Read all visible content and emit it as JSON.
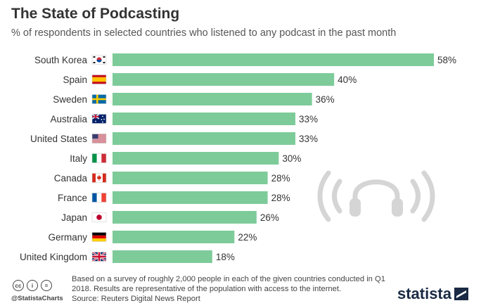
{
  "header": {
    "title": "The State of Podcasting",
    "subtitle": "% of respondents in selected countries who listened to any podcast in the past month"
  },
  "chart_data": {
    "type": "bar",
    "orientation": "horizontal",
    "categories": [
      "South Korea",
      "Spain",
      "Sweden",
      "Australia",
      "United States",
      "Italy",
      "Canada",
      "France",
      "Japan",
      "Germany",
      "United Kingdom"
    ],
    "values": [
      58,
      40,
      36,
      33,
      33,
      30,
      28,
      28,
      26,
      22,
      18
    ],
    "value_labels": [
      "58%",
      "40%",
      "36%",
      "33%",
      "33%",
      "30%",
      "28%",
      "28%",
      "26%",
      "22%",
      "18%"
    ],
    "value_unit": "%",
    "xlim": [
      0,
      58
    ],
    "bar_color": "#7ecb9a",
    "grid": false,
    "title": "The State of Podcasting",
    "subtitle": "% of respondents in selected countries who listened to any podcast in the past month"
  },
  "footer": {
    "note": "Based on a survey of roughly 2,000 people in each of the given countries conducted in Q1 2018. Results are representative of the population with access to the internet.",
    "source": "Source: Reuters Digital News Report",
    "handle": "@StatistaCharts",
    "brand": "statista",
    "license_icons": [
      "cc",
      "i",
      "="
    ]
  },
  "icons": {
    "watermark": "headphones-icon",
    "flags": [
      "south-korea-flag",
      "spain-flag",
      "sweden-flag",
      "australia-flag",
      "united-states-flag",
      "italy-flag",
      "canada-flag",
      "france-flag",
      "japan-flag",
      "germany-flag",
      "united-kingdom-flag"
    ]
  },
  "colors": {
    "bar": "#7ecb9a",
    "brand": "#1a2a44",
    "watermark": "#d5d5d5"
  }
}
